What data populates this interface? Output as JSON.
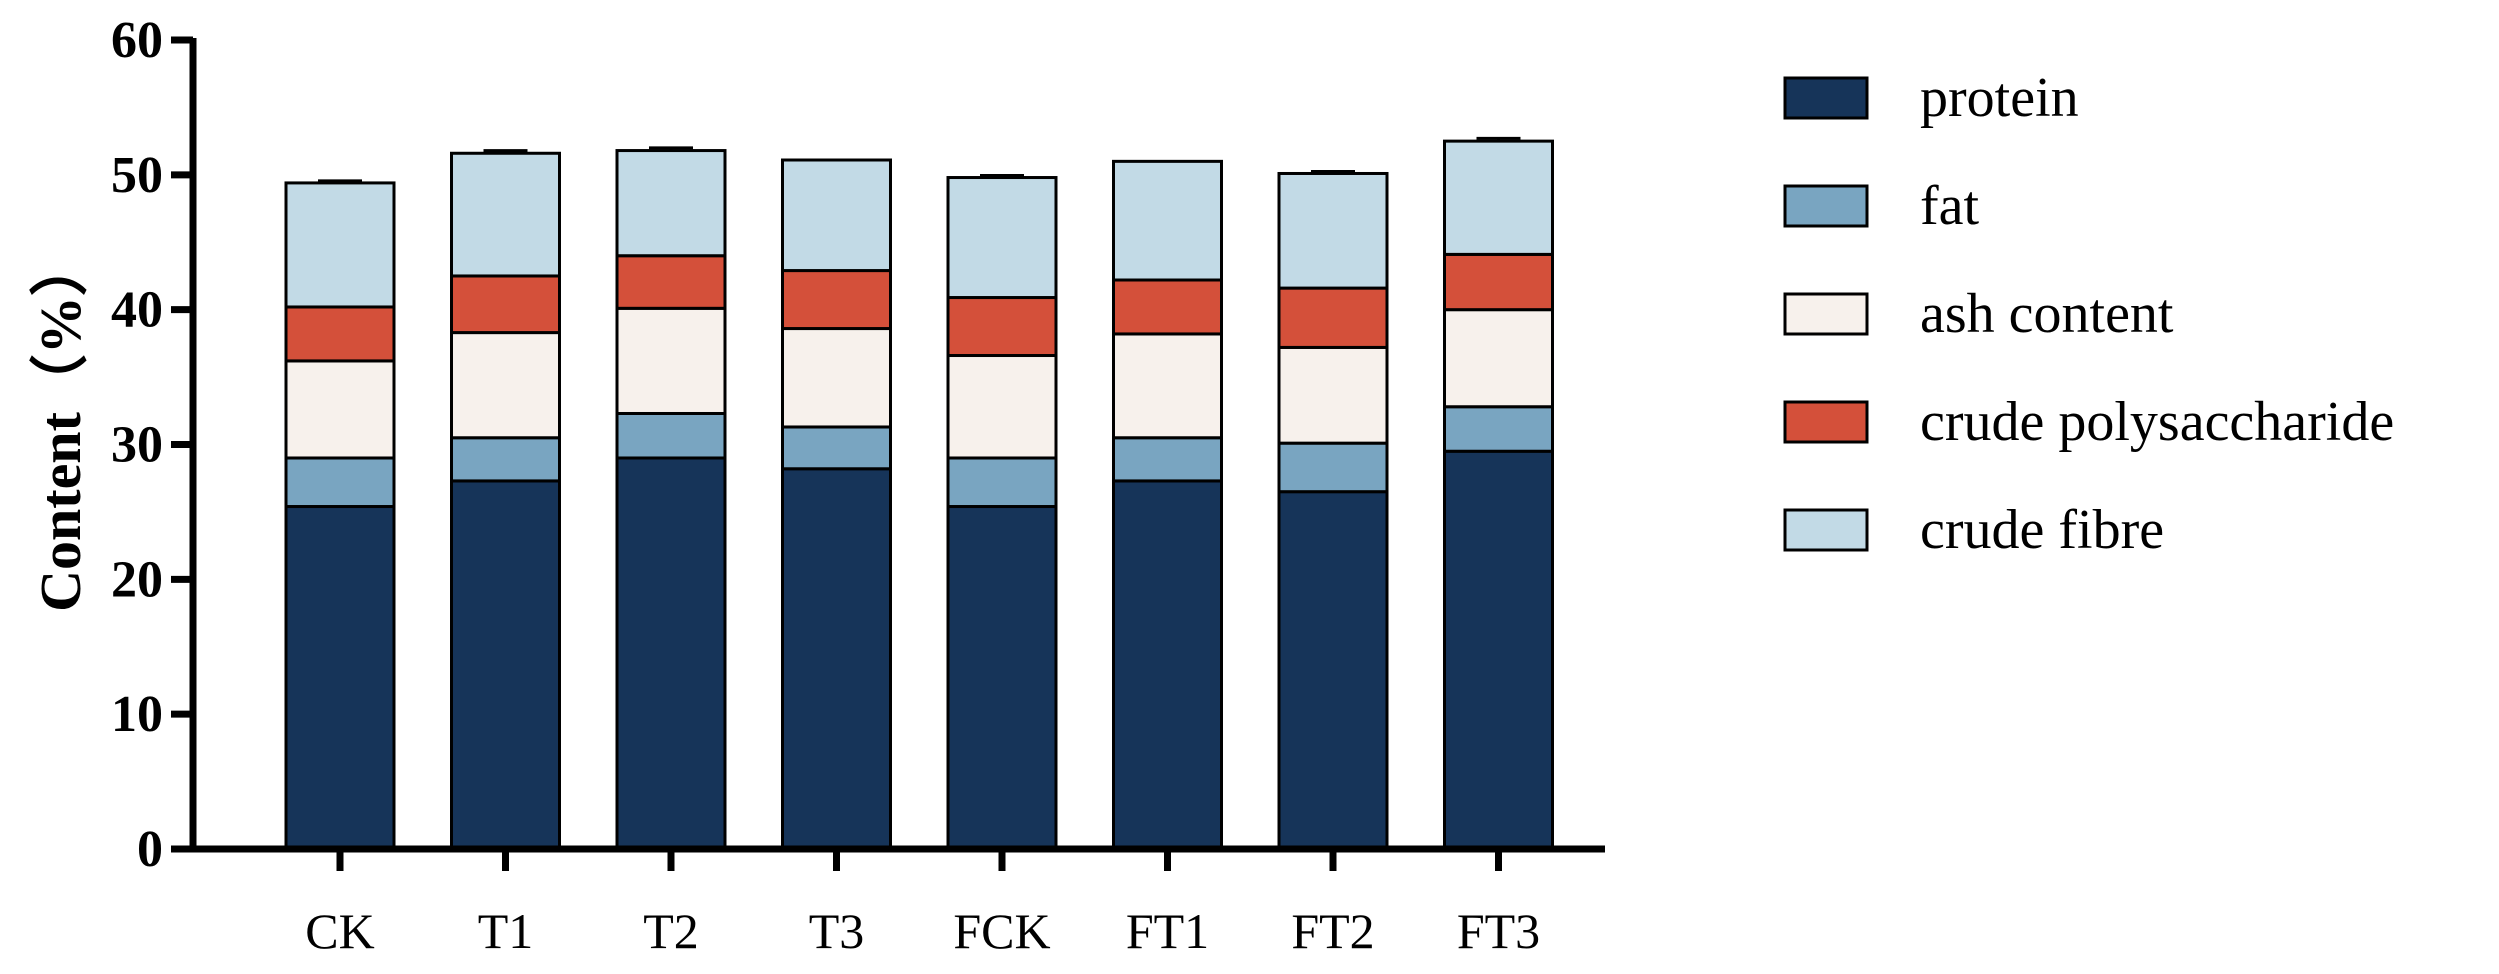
{
  "chart_data": {
    "type": "bar",
    "stacked": true,
    "ylabel": "Content（%）",
    "ylim": [
      0,
      60
    ],
    "yticks": [
      0,
      10,
      20,
      30,
      40,
      50,
      60
    ],
    "categories": [
      "CK",
      "T1",
      "T2",
      "T3",
      "FCK",
      "FT1",
      "FT2",
      "FT3"
    ],
    "series": [
      {
        "name": "protein",
        "color": "#163459",
        "values": [
          25.4,
          27.3,
          29.0,
          28.2,
          25.4,
          27.3,
          26.5,
          29.5
        ],
        "errors": [
          0.4,
          0.35,
          0.2,
          0.4,
          0.3,
          0.2,
          0.2,
          0.3
        ]
      },
      {
        "name": "fat",
        "color": "#79a5c1",
        "values": [
          3.6,
          3.2,
          3.3,
          3.1,
          3.6,
          3.2,
          3.6,
          3.3
        ],
        "errors": [
          0.2,
          0.2,
          0.2,
          0,
          0,
          0,
          0.2,
          0
        ]
      },
      {
        "name": "ash content",
        "color": "#f7f1ec",
        "values": [
          7.2,
          7.8,
          7.8,
          7.3,
          7.6,
          7.7,
          7.1,
          7.2
        ],
        "errors": [
          0,
          0.15,
          0,
          0,
          0,
          0.15,
          0,
          0
        ]
      },
      {
        "name": "crude polysaccharide",
        "color": "#d4503a",
        "values": [
          4.0,
          4.2,
          3.9,
          4.3,
          4.3,
          4.0,
          4.4,
          4.1
        ],
        "errors": [
          0,
          0.2,
          0,
          0,
          0.2,
          0,
          0.2,
          0.2
        ]
      },
      {
        "name": "crude fibre",
        "color": "#c2dae6",
        "values": [
          9.2,
          9.1,
          7.8,
          8.2,
          8.9,
          8.8,
          8.5,
          8.4
        ],
        "errors": [
          0.15,
          0.2,
          0.2,
          0,
          0.15,
          0,
          0.15,
          0.2
        ]
      }
    ],
    "legend_position": "right",
    "grid": false
  }
}
